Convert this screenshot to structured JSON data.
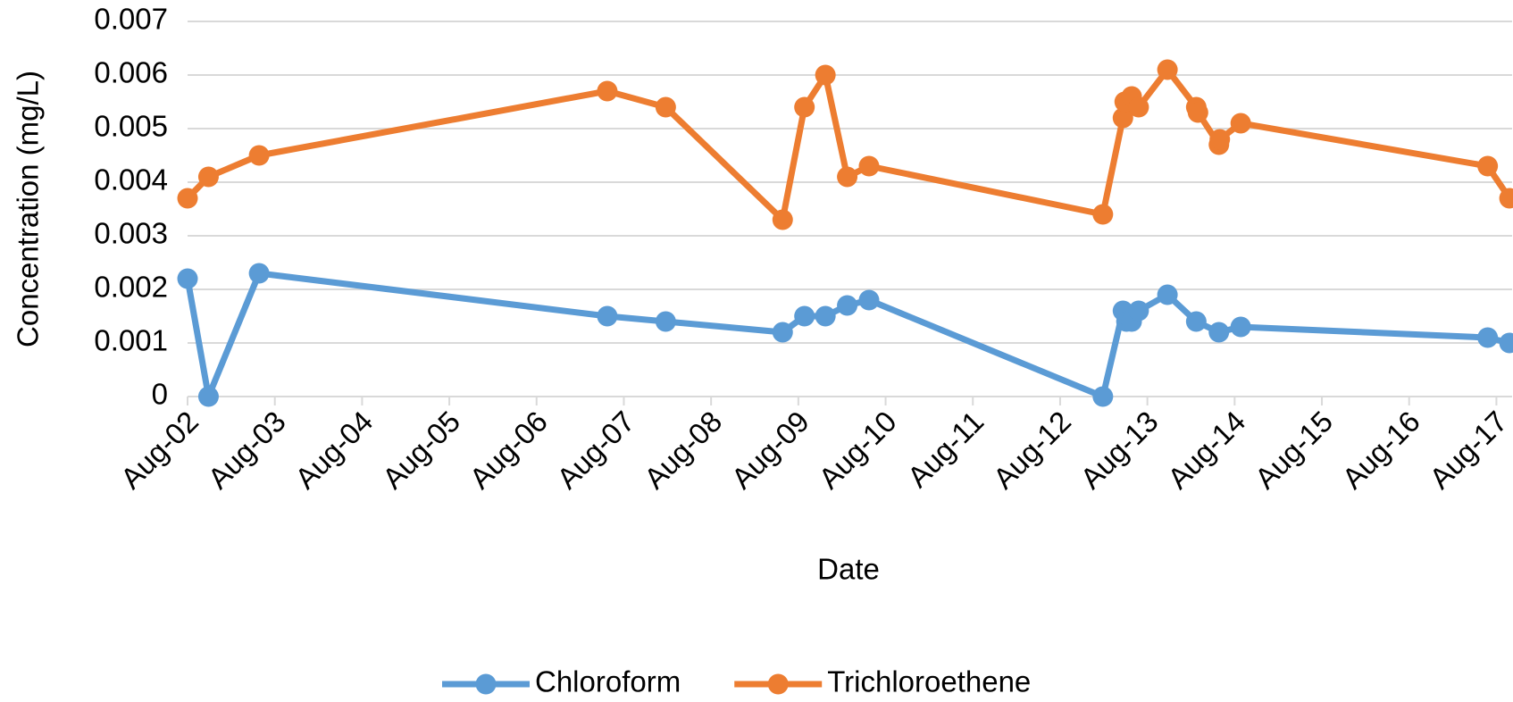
{
  "chart_data": {
    "type": "line",
    "x_label": "Date",
    "y_label": "Concentration (mg/L)",
    "xlim": [
      2,
      17.18
    ],
    "xticks": [
      {
        "value": 2,
        "label": "Aug-02"
      },
      {
        "value": 3,
        "label": "Aug-03"
      },
      {
        "value": 4,
        "label": "Aug-04"
      },
      {
        "value": 5,
        "label": "Aug-05"
      },
      {
        "value": 6,
        "label": "Aug-06"
      },
      {
        "value": 7,
        "label": "Aug-07"
      },
      {
        "value": 8,
        "label": "Aug-08"
      },
      {
        "value": 9,
        "label": "Aug-09"
      },
      {
        "value": 10,
        "label": "Aug-10"
      },
      {
        "value": 11,
        "label": "Aug-11"
      },
      {
        "value": 12,
        "label": "Aug-12"
      },
      {
        "value": 13,
        "label": "Aug-13"
      },
      {
        "value": 14,
        "label": "Aug-14"
      },
      {
        "value": 15,
        "label": "Aug-15"
      },
      {
        "value": 16,
        "label": "Aug-16"
      },
      {
        "value": 17,
        "label": "Aug-17"
      }
    ],
    "ylim": [
      0,
      0.007
    ],
    "yticks": [
      0,
      0.001,
      0.002,
      0.003,
      0.004,
      0.005,
      0.006,
      0.007
    ],
    "grid": true,
    "legend": "bottom",
    "series": [
      {
        "name": "Chloroform",
        "color": "#5b9bd5",
        "x": [
          2.0,
          2.24,
          2.82,
          6.81,
          7.48,
          8.82,
          9.07,
          9.31,
          9.56,
          9.81,
          12.49,
          12.72,
          12.76,
          12.82,
          12.9,
          13.23,
          13.56,
          13.82,
          14.07,
          16.9,
          17.15
        ],
        "values": [
          0.0022,
          0,
          0.0023,
          0.0015,
          0.0014,
          0.0012,
          0.0015,
          0.0015,
          0.0017,
          0.0018,
          0,
          0.0016,
          0.0014,
          0.0014,
          0.0016,
          0.0019,
          0.0014,
          0.0012,
          0.0013,
          0.0011,
          0.001
        ]
      },
      {
        "name": "Trichloroethene",
        "color": "#ed7d31",
        "x": [
          2.0,
          2.24,
          2.82,
          6.81,
          7.48,
          8.82,
          9.07,
          9.31,
          9.56,
          9.81,
          12.49,
          12.72,
          12.74,
          12.82,
          12.9,
          13.23,
          13.56,
          13.58,
          13.82,
          13.83,
          14.07,
          16.9,
          17.15
        ],
        "values": [
          0.0037,
          0.0041,
          0.0045,
          0.0057,
          0.0054,
          0.0033,
          0.0054,
          0.006,
          0.0041,
          0.0043,
          0.0034,
          0.0052,
          0.0055,
          0.0056,
          0.0054,
          0.0061,
          0.0054,
          0.0053,
          0.0047,
          0.0048,
          0.0051,
          0.0043,
          0.0037
        ]
      }
    ]
  }
}
